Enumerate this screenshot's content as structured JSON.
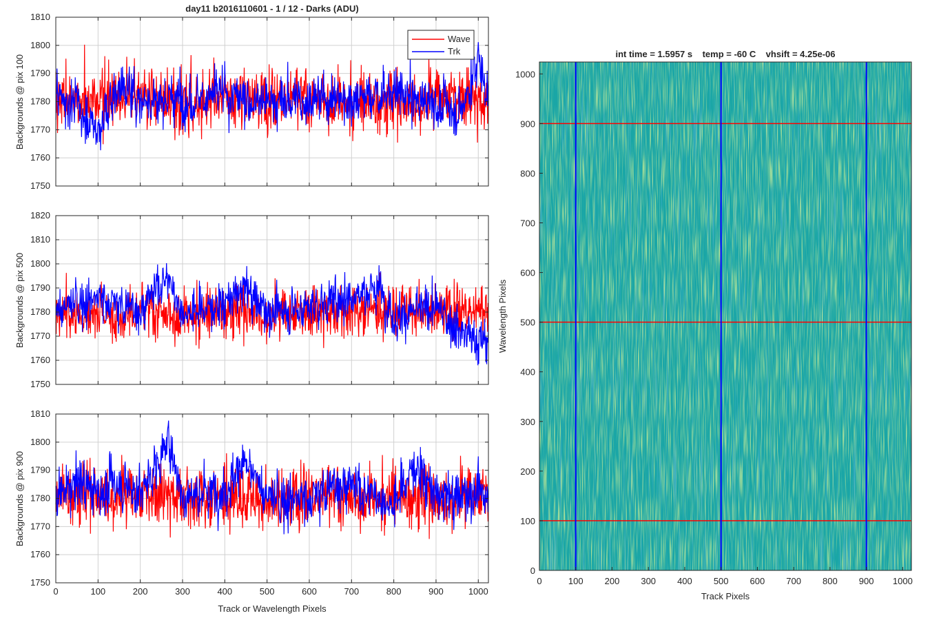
{
  "figure_title": "day11 b2016110601 - 1 / 12 - Darks (ADU)",
  "colors": {
    "wave": "#ff0000",
    "trk": "#0000ff",
    "grid": "#d0d0d0",
    "image_base": "#1aa6a6"
  },
  "chart_data": [
    {
      "type": "line",
      "title": "day11 b2016110601 - 1 / 12 - Darks (ADU)",
      "xlabel": "",
      "ylabel": "Backgrounds @ pix 100",
      "xlim": [
        0,
        1024
      ],
      "ylim": [
        1750,
        1810
      ],
      "xticks": [
        0,
        100,
        200,
        300,
        400,
        500,
        600,
        700,
        800,
        900,
        1000
      ],
      "yticks": [
        1750,
        1760,
        1770,
        1780,
        1790,
        1800,
        1810
      ],
      "grid": true,
      "legend": {
        "placement": "top-right",
        "entries": [
          "Wave",
          "Trk"
        ]
      },
      "series": [
        {
          "name": "Wave",
          "color": "#ff0000",
          "mean": 1781,
          "x": [
            0,
            100,
            200,
            300,
            400,
            500,
            600,
            700,
            800,
            900,
            1000,
            1024
          ],
          "values": [
            1781,
            1780,
            1782,
            1779,
            1781,
            1780,
            1781,
            1780,
            1779,
            1781,
            1780,
            1779
          ]
        },
        {
          "name": "Trk",
          "color": "#0000ff",
          "mean": 1781,
          "x": [
            0,
            50,
            100,
            150,
            200,
            300,
            400,
            500,
            600,
            700,
            800,
            900,
            960,
            1000,
            1024
          ],
          "values": [
            1782,
            1779,
            1770,
            1786,
            1781,
            1781,
            1782,
            1780,
            1781,
            1781,
            1783,
            1779,
            1777,
            1795,
            1782
          ]
        }
      ]
    },
    {
      "type": "line",
      "title": "",
      "xlabel": "",
      "ylabel": "Backgrounds @ pix 500",
      "xlim": [
        0,
        1024
      ],
      "ylim": [
        1750,
        1820
      ],
      "xticks": [
        0,
        100,
        200,
        300,
        400,
        500,
        600,
        700,
        800,
        900,
        1000
      ],
      "yticks": [
        1750,
        1760,
        1770,
        1780,
        1790,
        1800,
        1810,
        1820
      ],
      "grid": true,
      "series": [
        {
          "name": "Wave",
          "color": "#ff0000",
          "mean": 1780,
          "x": [
            0,
            100,
            200,
            300,
            400,
            500,
            600,
            700,
            800,
            900,
            1000,
            1024
          ],
          "values": [
            1780,
            1779,
            1780,
            1778,
            1780,
            1779,
            1779,
            1781,
            1780,
            1781,
            1780,
            1779
          ]
        },
        {
          "name": "Trk",
          "color": "#0000ff",
          "mean": 1780,
          "x": [
            0,
            50,
            100,
            150,
            200,
            260,
            300,
            400,
            450,
            500,
            600,
            700,
            770,
            800,
            900,
            960,
            1000,
            1024
          ],
          "values": [
            1780,
            1784,
            1786,
            1783,
            1781,
            1795,
            1780,
            1783,
            1790,
            1780,
            1782,
            1787,
            1790,
            1778,
            1782,
            1772,
            1768,
            1768
          ]
        }
      ]
    },
    {
      "type": "line",
      "title": "",
      "xlabel": "Track or Wavelength Pixels",
      "ylabel": "Backgrounds @ pix 900",
      "xlim": [
        0,
        1024
      ],
      "ylim": [
        1750,
        1810
      ],
      "xticks": [
        0,
        100,
        200,
        300,
        400,
        500,
        600,
        700,
        800,
        900,
        1000
      ],
      "yticks": [
        1750,
        1760,
        1770,
        1780,
        1790,
        1800,
        1810
      ],
      "grid": true,
      "series": [
        {
          "name": "Wave",
          "color": "#ff0000",
          "mean": 1781,
          "x": [
            0,
            100,
            200,
            300,
            400,
            500,
            600,
            700,
            800,
            900,
            1000,
            1024
          ],
          "values": [
            1782,
            1781,
            1780,
            1781,
            1780,
            1779,
            1781,
            1780,
            1781,
            1779,
            1781,
            1780
          ]
        },
        {
          "name": "Trk",
          "color": "#0000ff",
          "mean": 1783,
          "x": [
            0,
            60,
            100,
            150,
            200,
            250,
            270,
            300,
            400,
            440,
            500,
            600,
            680,
            800,
            850,
            900,
            1000,
            1024
          ],
          "values": [
            1780,
            1786,
            1782,
            1786,
            1782,
            1795,
            1800,
            1781,
            1783,
            1793,
            1780,
            1780,
            1786,
            1778,
            1792,
            1780,
            1782,
            1780
          ]
        }
      ]
    },
    {
      "type": "heatmap",
      "title": "int time = 1.5957 s    temp = -60 C    vhsift = 4.25e-06",
      "xlabel": "Track Pixels",
      "ylabel": "Wavelength Pixels",
      "xlim": [
        0,
        1024
      ],
      "ylim": [
        0,
        1024
      ],
      "xticks": [
        0,
        100,
        200,
        300,
        400,
        500,
        600,
        700,
        800,
        900,
        1000
      ],
      "yticks": [
        0,
        100,
        200,
        300,
        400,
        500,
        600,
        700,
        800,
        900,
        1000
      ],
      "vertical_markers": [
        100,
        500,
        900
      ],
      "horizontal_markers": [
        100,
        500,
        900
      ],
      "vertical_marker_color": "#0000ff",
      "horizontal_marker_color": "#ff0000"
    }
  ]
}
